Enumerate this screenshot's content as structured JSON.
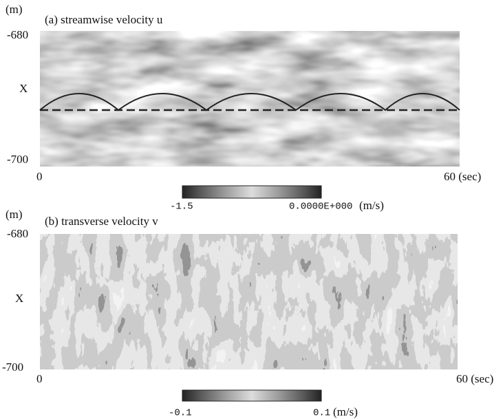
{
  "panels": [
    {
      "unit": "(m)",
      "title": "(a) streamwise velocity u",
      "y_top": "-680",
      "y_mid": "X",
      "y_bottom": "-700",
      "x_start": "0",
      "x_end": "60 (sec)",
      "colorbar_min": "-1.5",
      "colorbar_max": "0.0000E+000",
      "colorbar_unit": "(m/s)"
    },
    {
      "unit": "(m)",
      "title": "(b) transverse velocity v",
      "y_top": "-680",
      "y_mid": "X",
      "y_bottom": "-700",
      "x_start": "0",
      "x_end": "60 (sec)",
      "colorbar_min": "-0.1",
      "colorbar_max": "0.1",
      "colorbar_unit": "(m/s)"
    }
  ]
}
